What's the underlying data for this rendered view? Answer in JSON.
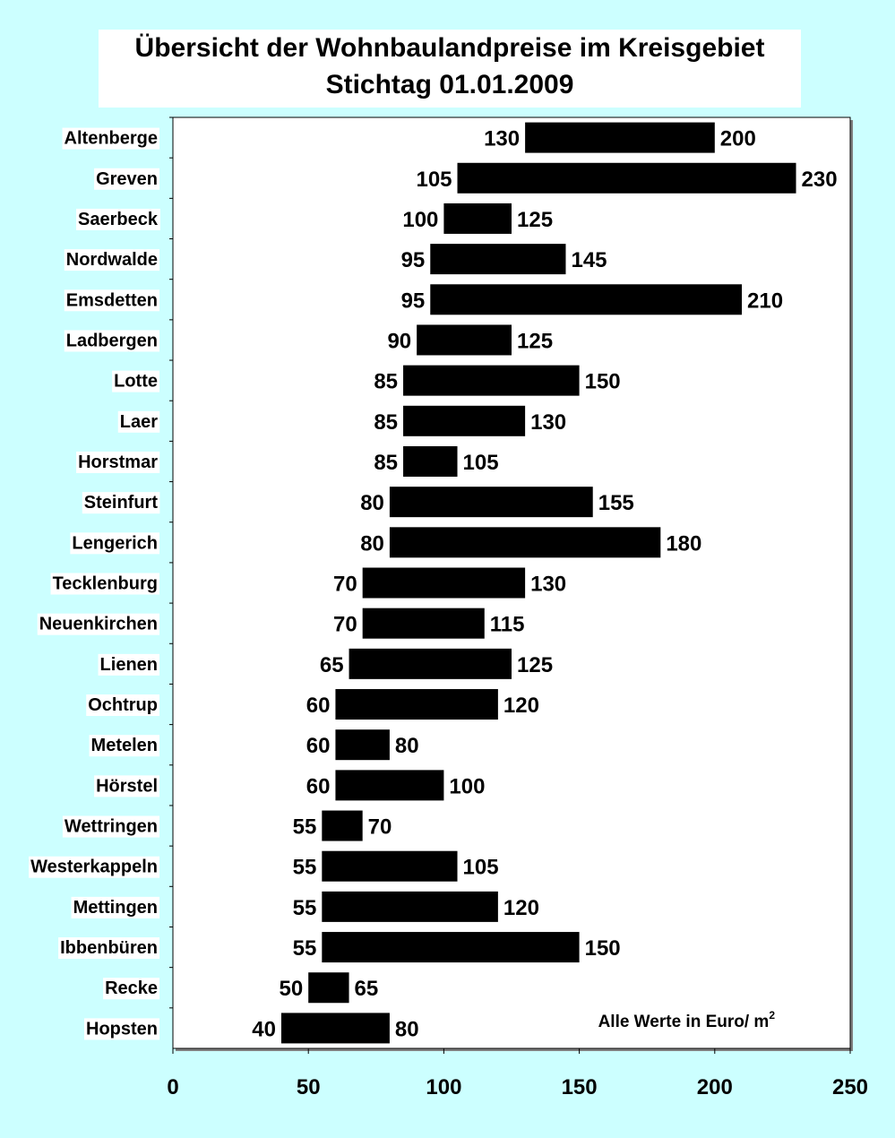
{
  "chart_data": {
    "type": "bar",
    "title": "Übersicht der Wohnbaulandpreise im Kreisgebiet",
    "subtitle": "Stichtag 01.01.2009",
    "annotation": "Alle Werte in Euro/ m",
    "annotation_superscript": "2",
    "xlim": [
      0,
      250
    ],
    "x_ticks": [
      0,
      50,
      100,
      150,
      200,
      250
    ],
    "grid": false,
    "bar_color": "#000000",
    "plot_background": "#ffffff",
    "page_background": "#ccffff",
    "categories": [
      "Altenberge",
      "Greven",
      "Saerbeck",
      "Nordwalde",
      "Emsdetten",
      "Ladbergen",
      "Lotte",
      "Laer",
      "Horstmar",
      "Steinfurt",
      "Lengerich",
      "Tecklenburg",
      "Neuenkirchen",
      "Lienen",
      "Ochtrup",
      "Metelen",
      "Hörstel",
      "Wettringen",
      "Westerkappeln",
      "Mettingen",
      "Ibbenbüren",
      "Recke",
      "Hopsten"
    ],
    "series": [
      {
        "values_min": [
          130,
          105,
          100,
          95,
          95,
          90,
          85,
          85,
          85,
          80,
          80,
          70,
          70,
          65,
          60,
          60,
          60,
          55,
          55,
          55,
          55,
          50,
          40
        ],
        "values_max": [
          200,
          230,
          125,
          145,
          210,
          125,
          150,
          130,
          105,
          155,
          180,
          130,
          115,
          125,
          120,
          80,
          100,
          70,
          105,
          120,
          150,
          65,
          80
        ]
      }
    ]
  }
}
